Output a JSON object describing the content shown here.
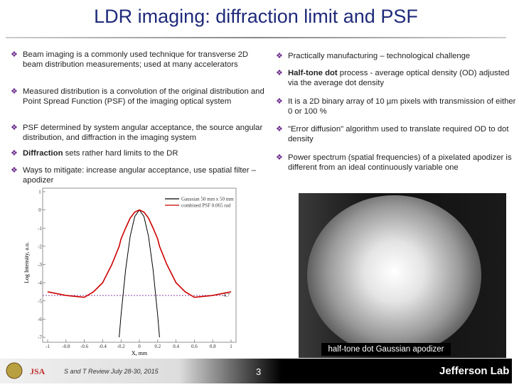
{
  "title": "LDR imaging: diffraction limit and PSF",
  "left_bullets": [
    {
      "text": "Beam imaging is a commonly used technique for transverse 2D beam distribution measurements; used at many accelerators"
    },
    {
      "text": "Measured distribution is a convolution of the original distribution and Point Spread Function (PSF) of the imaging optical system"
    },
    {
      "text": "PSF determined by system angular acceptance, the source angular distribution, and diffraction in the imaging system"
    },
    {
      "bold": "Diffraction",
      "text": "sets rather hard limits to the DR"
    },
    {
      "text": "Ways to mitigate: increase angular acceptance, use spatial filter – apodizer"
    }
  ],
  "right_bullets": [
    {
      "text": "Practically manufacturing – technological challenge"
    },
    {
      "bold": "Half-tone dot",
      "text": "process - average optical density (OD) adjusted via the average dot density"
    },
    {
      "text": "It is a 2D binary array of 10 µm pixels with transmission of either 0 or 100 %"
    },
    {
      "text": "\"Error diffusion\" algorithm used to translate required OD to dot density"
    },
    {
      "text": "Power spectrum (spatial frequencies) of a pixelated apodizer is different from an ideal continuously variable one"
    }
  ],
  "plot": {
    "type": "line",
    "xlabel": "X, mm",
    "ylabel": "Log Intensity, a.u.",
    "x": [
      -1,
      -0.8,
      -0.6,
      -0.5,
      -0.4,
      -0.3,
      -0.22,
      -0.2,
      -0.15,
      -0.1,
      -0.05,
      0,
      0.05,
      0.1,
      0.15,
      0.2,
      0.22,
      0.3,
      0.4,
      0.5,
      0.6,
      0.8,
      1
    ],
    "series": [
      {
        "name": "Gaussian 50 mm x 50 mm",
        "color": "#000000",
        "values": [
          null,
          null,
          null,
          null,
          null,
          null,
          -7,
          -5.8,
          -3.3,
          -1.45,
          -0.36,
          0,
          -0.36,
          -1.45,
          -3.3,
          -5.8,
          -7,
          null,
          null,
          null,
          null,
          null,
          null
        ]
      },
      {
        "name": "combined PSF 0.065 rad",
        "color": "#cc0000",
        "values": [
          -4.5,
          -4.7,
          -4.8,
          -4.5,
          -4,
          -3,
          -2,
          -1.6,
          -1,
          -0.45,
          -0.12,
          0,
          -0.12,
          -0.45,
          -1,
          -1.6,
          -2,
          -3,
          -4,
          -4.5,
          -4.8,
          -4.7,
          -4.5
        ]
      }
    ],
    "xlim": [
      -1,
      1
    ],
    "ylim": [
      -7,
      1
    ],
    "xticks": [
      -1,
      -0.8,
      -0.6,
      -0.4,
      -0.2,
      0,
      0.2,
      0.4,
      0.6,
      0.8,
      1
    ],
    "yticks": [
      1,
      0,
      -1,
      -2,
      -3,
      -4,
      -5,
      -6,
      -7
    ],
    "ref_line": -4.7
  },
  "photo_caption": "half-tone dot Gaussian apodizer",
  "footer": {
    "event": "S and T Review July 28-30, 2015",
    "page": 3,
    "logo": "Jefferson Lab"
  }
}
